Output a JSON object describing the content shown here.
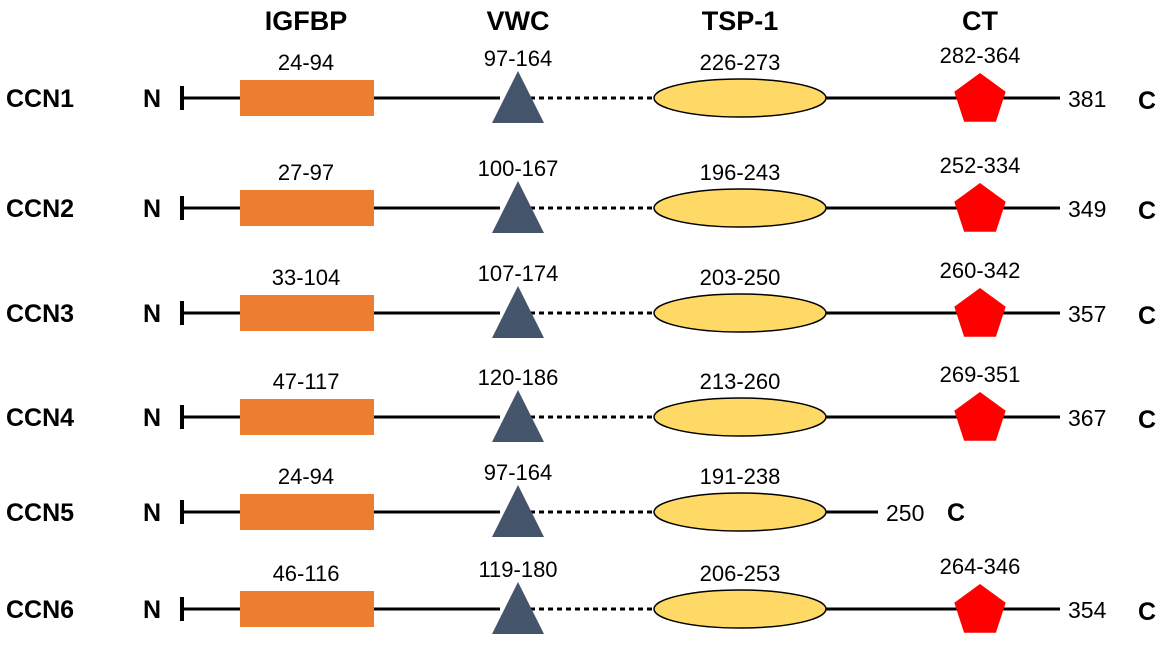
{
  "domains": {
    "igfbp": "IGFBP",
    "vwc": "VWC",
    "tsp1": "TSP-1",
    "ct": "CT"
  },
  "terminus": {
    "n": "N",
    "c": "C"
  },
  "proteins": [
    {
      "name": "CCN1",
      "igfbp": "24-94",
      "vwc": "97-164",
      "tsp1": "226-273",
      "ct": "282-364",
      "length": "381"
    },
    {
      "name": "CCN2",
      "igfbp": "27-97",
      "vwc": "100-167",
      "tsp1": "196-243",
      "ct": "252-334",
      "length": "349"
    },
    {
      "name": "CCN3",
      "igfbp": "33-104",
      "vwc": "107-174",
      "tsp1": "203-250",
      "ct": "260-342",
      "length": "357"
    },
    {
      "name": "CCN4",
      "igfbp": "47-117",
      "vwc": "120-186",
      "tsp1": "213-260",
      "ct": "269-351",
      "length": "367"
    },
    {
      "name": "CCN5",
      "igfbp": "24-94",
      "vwc": "97-164",
      "tsp1": "191-238",
      "ct": null,
      "length": "250"
    },
    {
      "name": "CCN6",
      "igfbp": "46-116",
      "vwc": "119-180",
      "tsp1": "206-253",
      "ct": "264-346",
      "length": "354"
    }
  ],
  "colors": {
    "igfbp": "#ED7D31",
    "vwc": "#44546A",
    "tsp1": "#FFD966",
    "ct": "#FF0000",
    "line": "#000000"
  }
}
